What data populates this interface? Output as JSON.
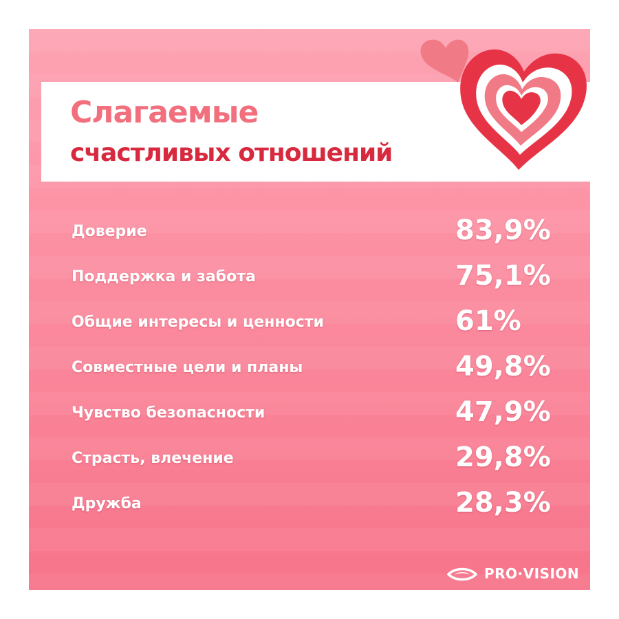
{
  "title": {
    "line1": "Слагаемые",
    "line2": "счастливых отношений"
  },
  "items": [
    {
      "label": "Доверие",
      "value": "83,9%",
      "percent": 83.9
    },
    {
      "label": "Поддержка и забота",
      "value": "75,1%",
      "percent": 75.1
    },
    {
      "label": "Общие интересы и ценности",
      "value": "61%",
      "percent": 61
    },
    {
      "label": "Совместные цели и планы",
      "value": "49,8%",
      "percent": 49.8
    },
    {
      "label": "Чувство безопасности",
      "value": "47,9%",
      "percent": 47.9
    },
    {
      "label": "Страсть, влечение",
      "value": "29,8%",
      "percent": 29.8
    },
    {
      "label": "Дружба",
      "value": "28,3%",
      "percent": 28.3
    }
  ],
  "logo": {
    "text": "PRO·VISION",
    "icon": "eye-icon"
  },
  "decor": {
    "icons": [
      "small-heart-icon",
      "large-heart-icon"
    ]
  },
  "colors": {
    "background_top": "#fda4b3",
    "background_bottom": "#f7748a",
    "title_light": "#f26f7e",
    "title_dark": "#d72a3e",
    "heart_red": "#e63446",
    "heart_pink": "#f07b86",
    "text": "#ffffff"
  }
}
